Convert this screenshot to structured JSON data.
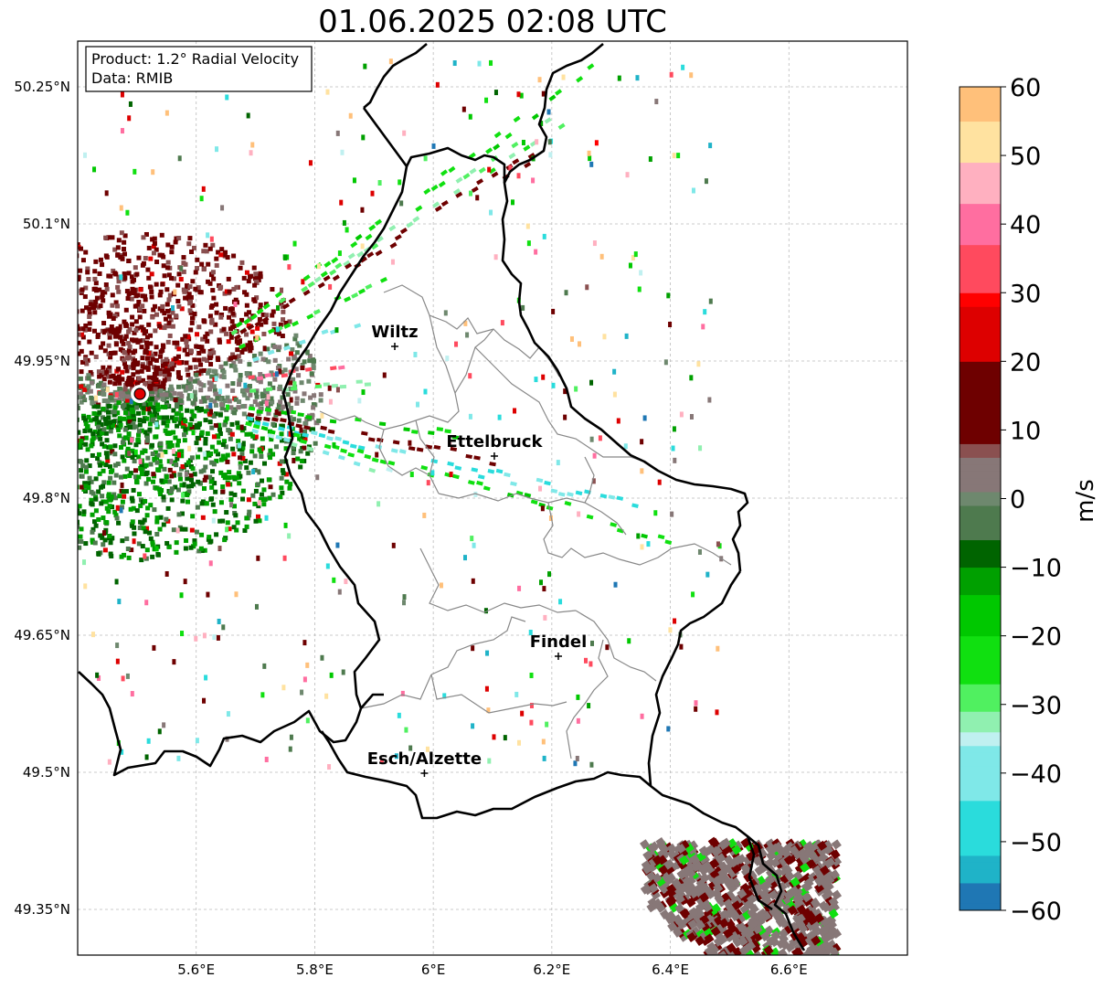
{
  "title": "01.06.2025 02:08 UTC",
  "info": {
    "product": "Product: 1.2° Radial Velocity",
    "data": "Data: RMIB"
  },
  "map": {
    "lon_range": [
      5.4,
      6.8
    ],
    "lat_range": [
      49.3,
      50.3
    ],
    "lon_ticks": [
      5.6,
      5.8,
      6.0,
      6.2,
      6.4,
      6.6
    ],
    "lon_tick_labels": [
      "5.6°E",
      "5.8°E",
      "6°E",
      "6.2°E",
      "6.4°E",
      "6.6°E"
    ],
    "lat_ticks": [
      49.35,
      49.5,
      49.65,
      49.8,
      49.95,
      50.1,
      50.25
    ],
    "lat_tick_labels": [
      "49.35°N",
      "49.5°N",
      "49.65°N",
      "49.8°N",
      "49.95°N",
      "50.1°N",
      "50.25°N"
    ],
    "grid": true,
    "radar_site": {
      "lon": 5.505,
      "lat": 49.914
    },
    "cities": [
      {
        "name": "Wiltz",
        "lon": 5.935,
        "lat": 49.966
      },
      {
        "name": "Ettelbruck",
        "lon": 6.103,
        "lat": 49.846
      },
      {
        "name": "Findel",
        "lon": 6.211,
        "lat": 49.627
      },
      {
        "name": "Esch/Alzette",
        "lon": 5.985,
        "lat": 49.499
      }
    ]
  },
  "colorbar": {
    "label": "m/s",
    "min": -60,
    "max": 60,
    "ticks": [
      -60,
      -50,
      -40,
      -30,
      -20,
      -10,
      0,
      10,
      20,
      30,
      40,
      50,
      60
    ],
    "tick_labels": [
      "−60",
      "−50",
      "−40",
      "−30",
      "−20",
      "−10",
      "0",
      "10",
      "20",
      "30",
      "40",
      "50",
      "60"
    ],
    "stops": [
      {
        "v": -60,
        "color": "#1f77b4"
      },
      {
        "v": -56,
        "color": "#1fb3c8"
      },
      {
        "v": -52,
        "color": "#2adcdc"
      },
      {
        "v": -44,
        "color": "#7fe8e8"
      },
      {
        "v": -36,
        "color": "#c0f0f0"
      },
      {
        "v": -34,
        "color": "#90f0b0"
      },
      {
        "v": -31,
        "color": "#50f060"
      },
      {
        "v": -27,
        "color": "#10e010"
      },
      {
        "v": -20,
        "color": "#00c800"
      },
      {
        "v": -14,
        "color": "#00a000"
      },
      {
        "v": -10,
        "color": "#006400"
      },
      {
        "v": -6,
        "color": "#4e7a4e"
      },
      {
        "v": -1,
        "color": "#6e886e"
      },
      {
        "v": 1,
        "color": "#877777"
      },
      {
        "v": 6,
        "color": "#8a5050"
      },
      {
        "v": 8,
        "color": "#6e0000"
      },
      {
        "v": 20,
        "color": "#dd0000"
      },
      {
        "v": 28,
        "color": "#ff0000"
      },
      {
        "v": 30,
        "color": "#ff4a5e"
      },
      {
        "v": 37,
        "color": "#ff6ea0"
      },
      {
        "v": 43,
        "color": "#ffb0c0"
      },
      {
        "v": 49,
        "color": "#ffe2a0"
      },
      {
        "v": 55,
        "color": "#ffc07a"
      },
      {
        "v": 60,
        "color": "#ff9a55"
      }
    ]
  }
}
